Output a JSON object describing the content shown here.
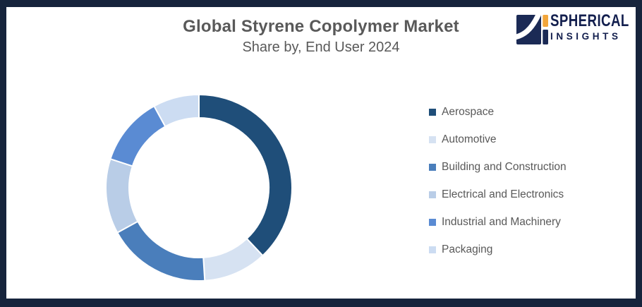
{
  "page": {
    "title": "Global Styrene Copolymer Market",
    "subtitle": "Share by, End User 2024",
    "border_color": "#16243c",
    "background_color": "#ffffff",
    "title_color": "#595959"
  },
  "logo": {
    "name_line1": "SPHERICAL",
    "name_line2": "INSIGHTS",
    "navy": "#131f4e",
    "icon_navy": "#1b2a55",
    "icon_orange": "#f2a63b"
  },
  "chart_data": {
    "type": "pie",
    "subtype": "donut",
    "title": "Global Styrene Copolymer Market",
    "subtitle": "Share by, End User 2024",
    "legend_position": "right",
    "start_angle_deg": 0,
    "direction": "clockwise",
    "value_labels_shown": false,
    "categories": [
      "Aerospace",
      "Automotive",
      "Building and Construction",
      "Electrical and Electronics",
      "Industrial and Machinery",
      "Packaging"
    ],
    "values": [
      38,
      11,
      18,
      13,
      12,
      8
    ],
    "colors": [
      "#1f4e79",
      "#d6e2f2",
      "#4a7ebb",
      "#b9cde7",
      "#5a8bd3",
      "#ccdcf2"
    ],
    "separator_color": "#ffffff"
  }
}
